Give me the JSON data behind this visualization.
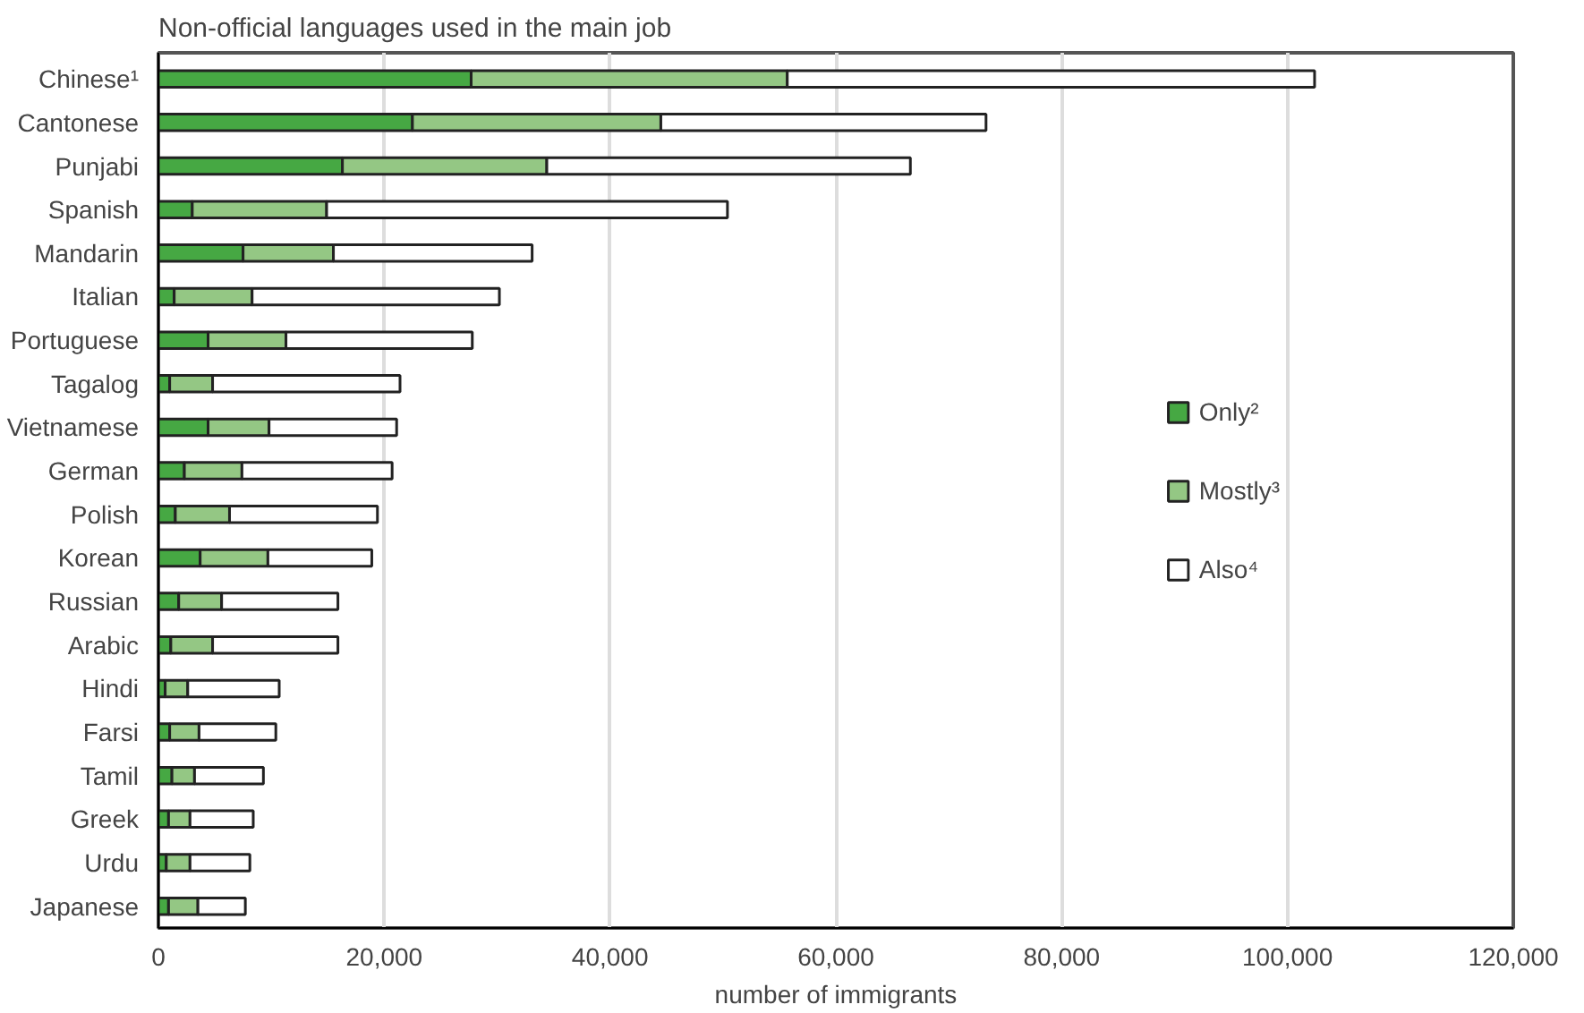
{
  "chart_data": {
    "type": "bar",
    "orientation": "horizontal",
    "stacked": true,
    "title": "Non-official languages used in the main job",
    "xlabel": "number of immigrants",
    "categories": [
      "Chinese¹",
      "Cantonese",
      "Punjabi",
      "Spanish",
      "Mandarin",
      "Italian",
      "Portuguese",
      "Tagalog",
      "Vietnamese",
      "German",
      "Polish",
      "Korean",
      "Russian",
      "Arabic",
      "Hindi",
      "Farsi",
      "Tamil",
      "Greek",
      "Urdu",
      "Japanese"
    ],
    "series": [
      {
        "name": "Only²",
        "color": "#46a843",
        "values": [
          27700,
          22500,
          16300,
          3000,
          7500,
          1400,
          4400,
          1000,
          4400,
          2300,
          1500,
          3700,
          1800,
          1100,
          600,
          1000,
          1200,
          900,
          700,
          900
        ]
      },
      {
        "name": "Mostly³",
        "color": "#94c784",
        "values": [
          28000,
          22000,
          18100,
          11900,
          8000,
          6900,
          6900,
          3800,
          5400,
          5100,
          4800,
          6000,
          3800,
          3700,
          2000,
          2600,
          2000,
          1900,
          2100,
          2600
        ]
      },
      {
        "name": "Also⁴",
        "color": "#ffffff",
        "values": [
          46700,
          28800,
          32200,
          35500,
          17600,
          21900,
          16500,
          16600,
          11300,
          13300,
          13100,
          9200,
          10300,
          11100,
          8100,
          6800,
          6100,
          5600,
          5300,
          4200
        ]
      }
    ],
    "xlim": [
      0,
      120000
    ],
    "xticks": [
      {
        "value": 0,
        "label": "0"
      },
      {
        "value": 20000,
        "label": "20,000"
      },
      {
        "value": 40000,
        "label": "40,000"
      },
      {
        "value": 60000,
        "label": "60,000"
      },
      {
        "value": 80000,
        "label": "80,000"
      },
      {
        "value": 100000,
        "label": "100,000"
      },
      {
        "value": 120000,
        "label": "120,000"
      }
    ],
    "grid": "x",
    "legend": "right"
  }
}
